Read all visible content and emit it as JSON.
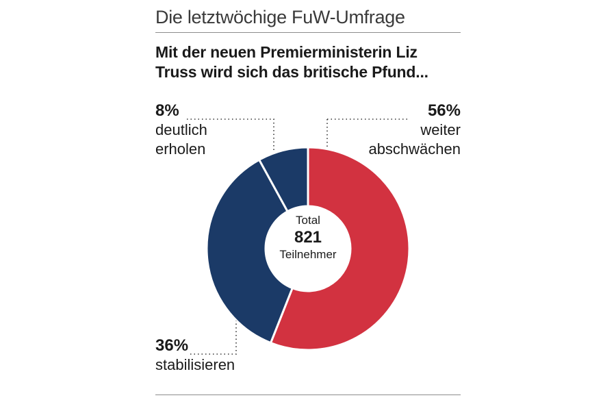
{
  "header": {
    "kicker": "Die letztwöchige FuW-Umfrage"
  },
  "question": "Mit der neuen Premierministerin Liz Truss wird sich das britische Pfund...",
  "center": {
    "line1": "Total",
    "count": "821",
    "line2": "Teilnehmer"
  },
  "colors": {
    "red": "#d23240",
    "navy": "#1b3a67",
    "rule": "#8c8c8c"
  },
  "chart_data": {
    "type": "pie",
    "donut": true,
    "title": "Mit der neuen Premierministerin Liz Truss wird sich das britische Pfund...",
    "slices": [
      {
        "label": "weiter abschwächen",
        "value": 56,
        "pct_label": "56%",
        "color": "#d23240"
      },
      {
        "label": "stabilisieren",
        "value": 36,
        "pct_label": "36%",
        "color": "#1b3a67"
      },
      {
        "label": "deutlich erholen",
        "value": 8,
        "pct_label": "8%",
        "color": "#1b3a67"
      }
    ],
    "total_label": "Total",
    "total": 821,
    "total_unit": "Teilnehmer"
  }
}
